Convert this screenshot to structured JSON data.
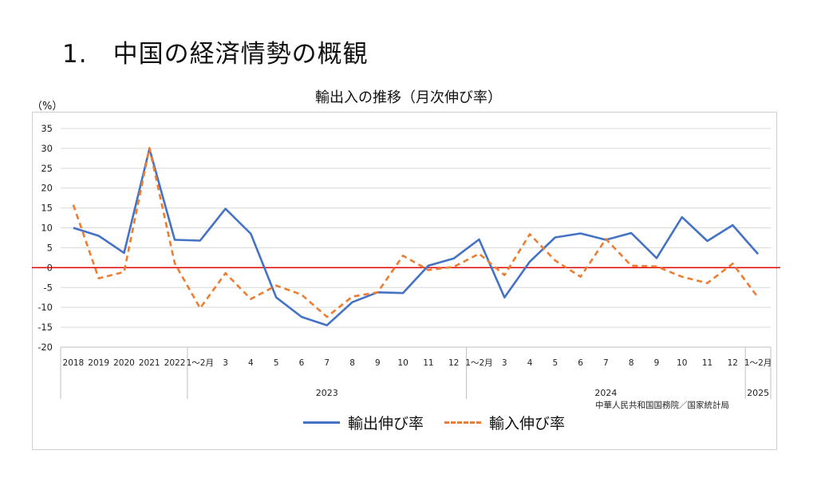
{
  "page": {
    "title": "1.　中国の経済情勢の概観"
  },
  "source": "中華人民共和国国務院／国家統計局",
  "colors": {
    "exports": "#4472C4",
    "imports": "#ED7D31",
    "zero_line": "#E00000",
    "grid": "#d9d9d9"
  },
  "chart_data": {
    "type": "line",
    "title": "輸出入の推移（月次伸び率）",
    "ylabel": "（%）",
    "ylim": [
      -20,
      35
    ],
    "yticks": [
      35,
      30,
      25,
      20,
      15,
      10,
      5,
      0,
      -5,
      -10,
      -15,
      -20
    ],
    "grid": true,
    "legend_position": "bottom",
    "categories": [
      "2018",
      "2019",
      "2020",
      "2021",
      "2022",
      "1～2月",
      "3",
      "4",
      "5",
      "6",
      "7",
      "8",
      "9",
      "10",
      "11",
      "12",
      "1～2月",
      "3",
      "4",
      "5",
      "6",
      "7",
      "8",
      "9",
      "10",
      "11",
      "12",
      "1～2月"
    ],
    "groups": [
      {
        "label": "2023",
        "start": 5,
        "end": 15
      },
      {
        "label": "2024",
        "start": 16,
        "end": 26
      },
      {
        "label": "2025",
        "start": 27,
        "end": 27
      }
    ],
    "series": [
      {
        "name": "輸出伸び率",
        "style": "solid",
        "values": [
          10,
          8,
          3.7,
          29.9,
          7,
          6.8,
          14.8,
          8.5,
          -7.5,
          -12.4,
          -14.5,
          -8.7,
          -6.2,
          -6.4,
          0.5,
          2.3,
          7.1,
          -7.5,
          1.5,
          7.6,
          8.6,
          7,
          8.7,
          2.4,
          12.7,
          6.7,
          10.7,
          3.4
        ]
      },
      {
        "name": "輸入伸び率",
        "style": "dashed",
        "values": [
          15.8,
          -2.7,
          -1.1,
          30.1,
          1.1,
          -10.2,
          -1.4,
          -7.9,
          -4.5,
          -6.8,
          -12.4,
          -7.3,
          -6.2,
          3,
          -0.6,
          0.2,
          3.5,
          -1.9,
          8.4,
          1.8,
          -2.3,
          7.2,
          0.5,
          0.3,
          -2.3,
          -3.9,
          1,
          -7.5
        ]
      }
    ]
  }
}
